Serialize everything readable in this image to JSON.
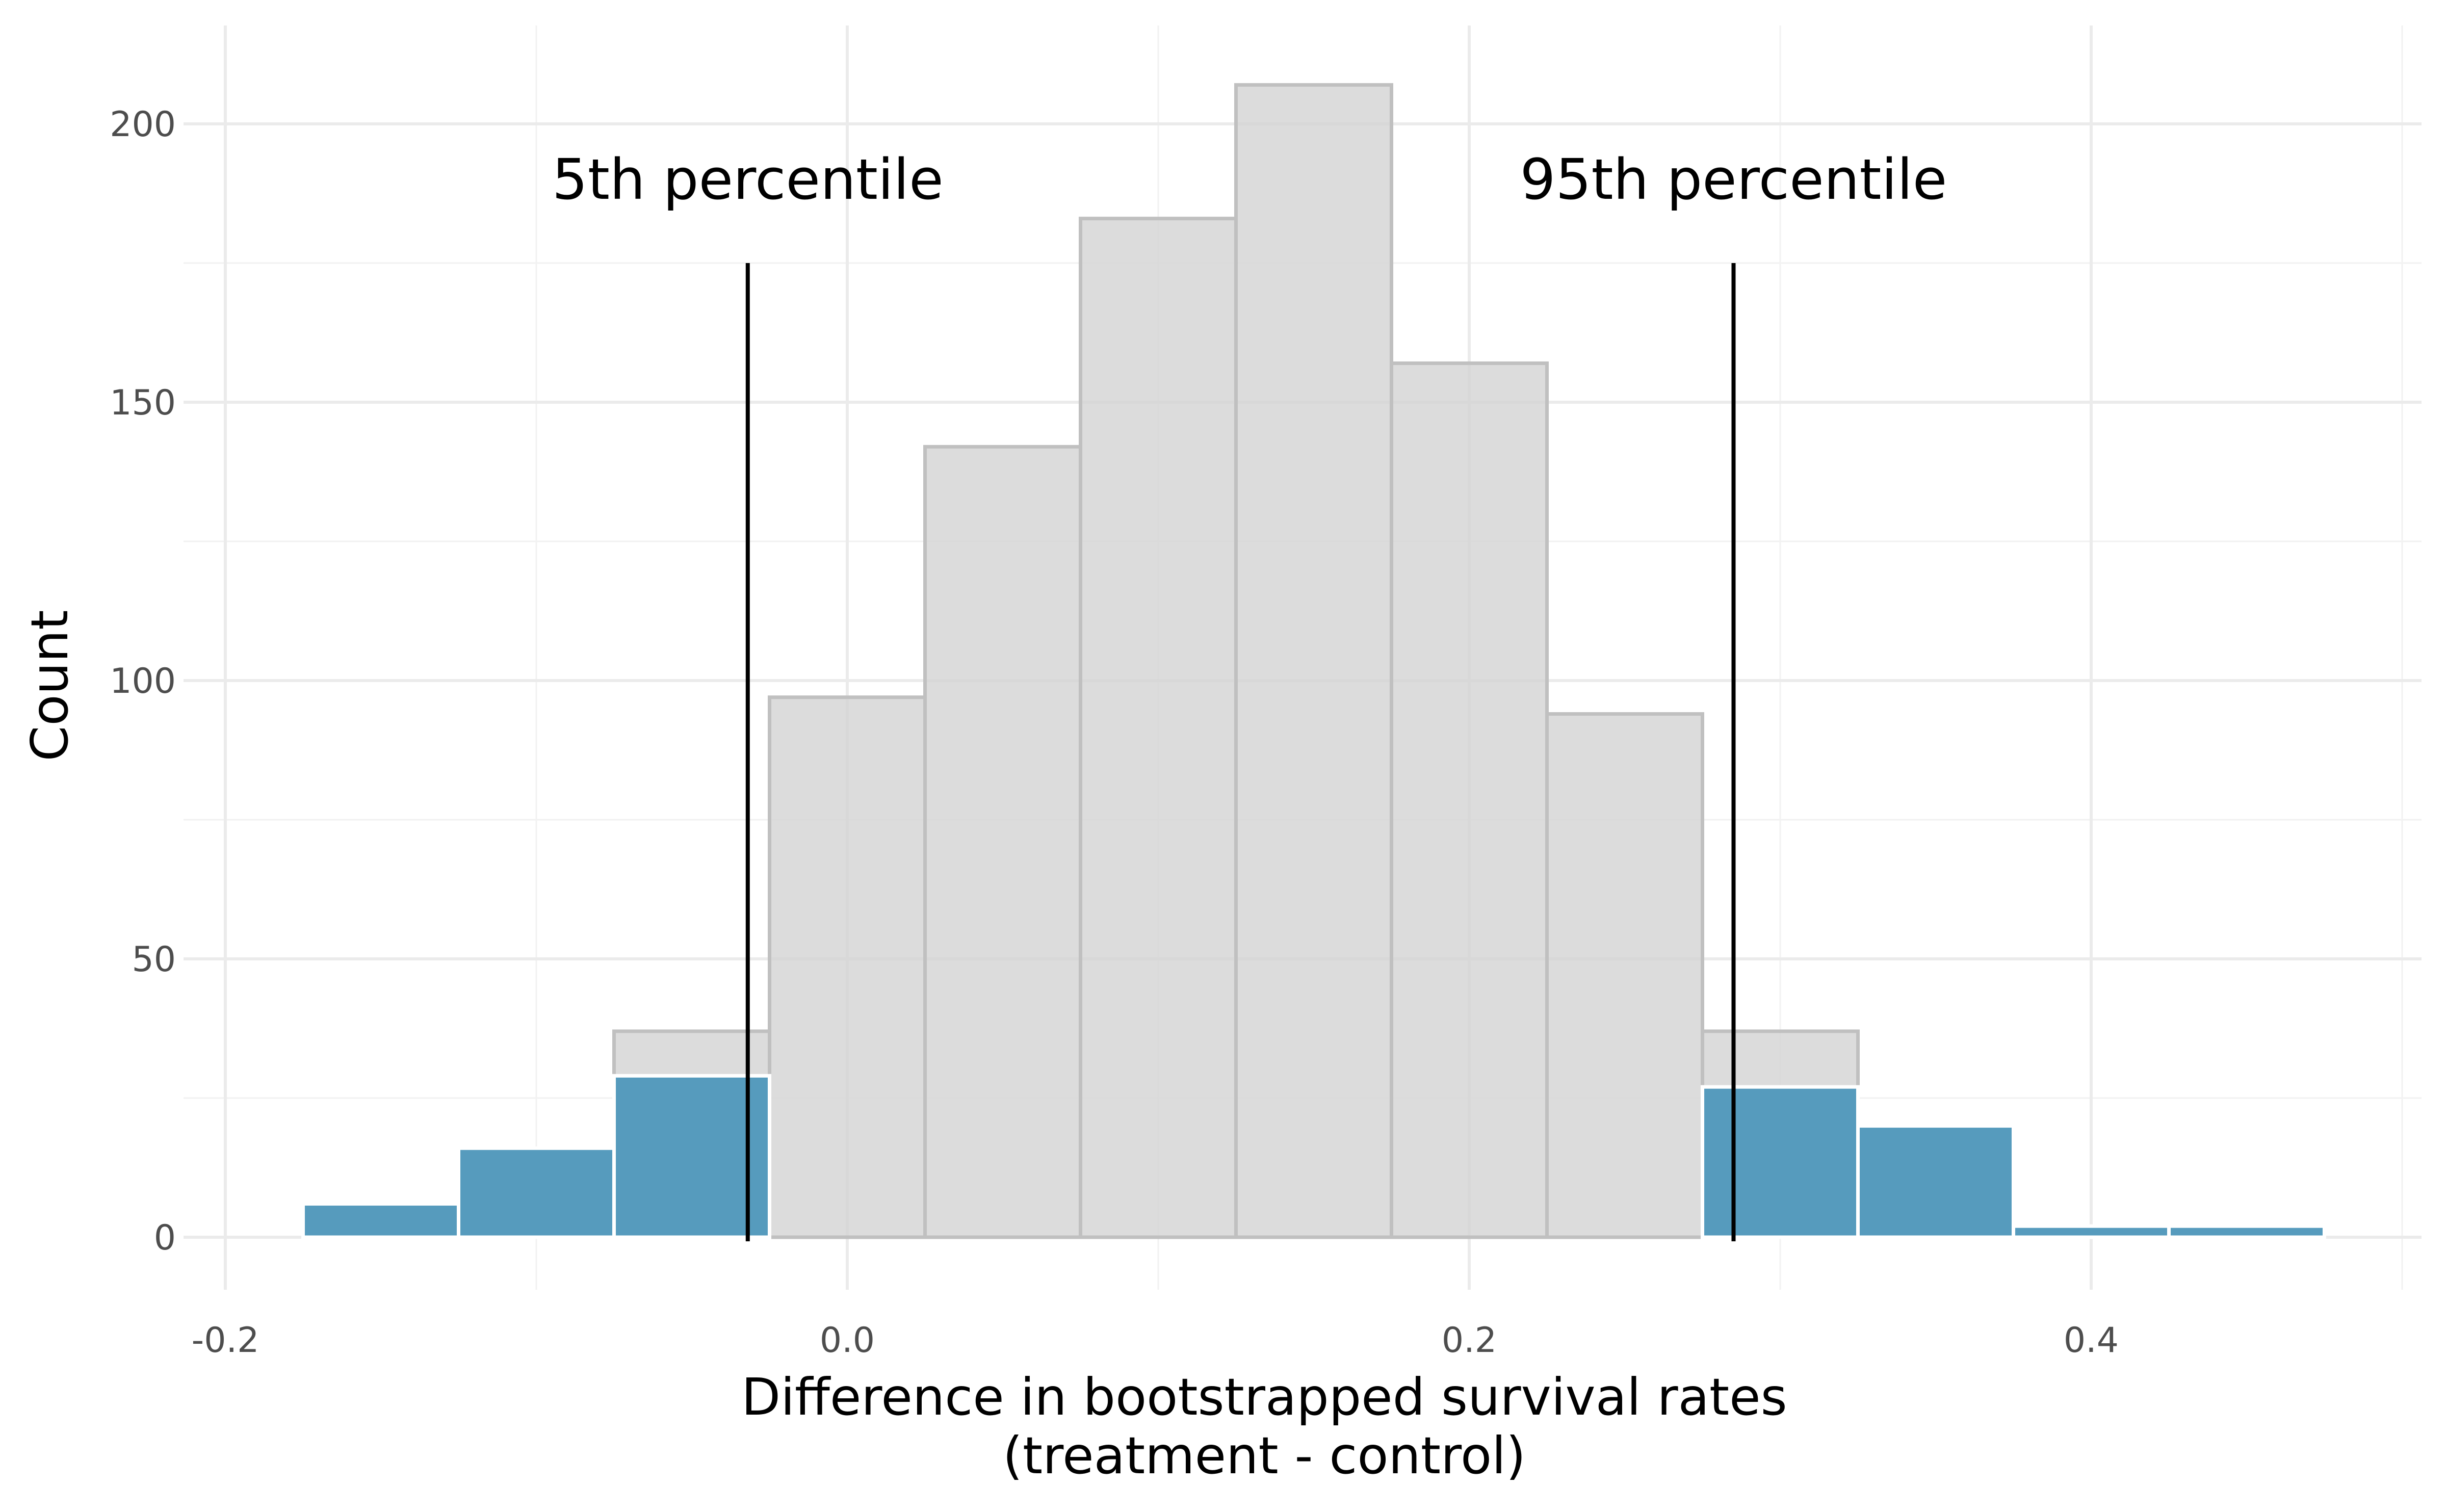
{
  "chart_data": {
    "type": "bar",
    "subtype": "histogram",
    "xlabel": "Difference in bootstrapped survival rates",
    "xlabel_line2": "(treatment - control)",
    "ylabel": "Count",
    "xlim": [
      -0.2,
      0.5
    ],
    "ylim": [
      0,
      210
    ],
    "x_ticks": [
      -0.2,
      0.0,
      0.2,
      0.4
    ],
    "x_tick_labels": [
      "-0.2",
      "0.0",
      "0.2",
      "0.4"
    ],
    "y_ticks": [
      0,
      50,
      100,
      150,
      200
    ],
    "y_tick_labels": [
      "0",
      "50",
      "100",
      "150",
      "200"
    ],
    "grid": true,
    "bin_width": 0.05,
    "series": [
      {
        "color": "#d3d3d3",
        "bins": [
          {
            "x0": -0.075,
            "x1": -0.025,
            "count": 37
          },
          {
            "x0": -0.025,
            "x1": 0.025,
            "count": 97
          },
          {
            "x0": 0.025,
            "x1": 0.075,
            "count": 142
          },
          {
            "x0": 0.075,
            "x1": 0.125,
            "count": 183
          },
          {
            "x0": 0.125,
            "x1": 0.175,
            "count": 207
          },
          {
            "x0": 0.175,
            "x1": 0.225,
            "count": 157
          },
          {
            "x0": 0.225,
            "x1": 0.275,
            "count": 94
          },
          {
            "x0": 0.275,
            "x1": 0.325,
            "count": 37
          }
        ]
      },
      {
        "color": "#569bbd",
        "bins": [
          {
            "x0": -0.175,
            "x1": -0.125,
            "count": 6
          },
          {
            "x0": -0.125,
            "x1": -0.075,
            "count": 16
          },
          {
            "x0": -0.075,
            "x1": -0.025,
            "count": 29
          },
          {
            "x0": 0.275,
            "x1": 0.325,
            "count": 27
          },
          {
            "x0": 0.325,
            "x1": 0.375,
            "count": 20
          },
          {
            "x0": 0.375,
            "x1": 0.425,
            "count": 2
          },
          {
            "x0": 0.425,
            "x1": 0.475,
            "count": 2
          }
        ]
      }
    ],
    "reference_lines": [
      {
        "x": -0.032,
        "y_top": 175,
        "label": "5th percentile",
        "label_y": 190
      },
      {
        "x": 0.285,
        "y_top": 175,
        "label": "95th percentile",
        "label_y": 190
      }
    ]
  }
}
